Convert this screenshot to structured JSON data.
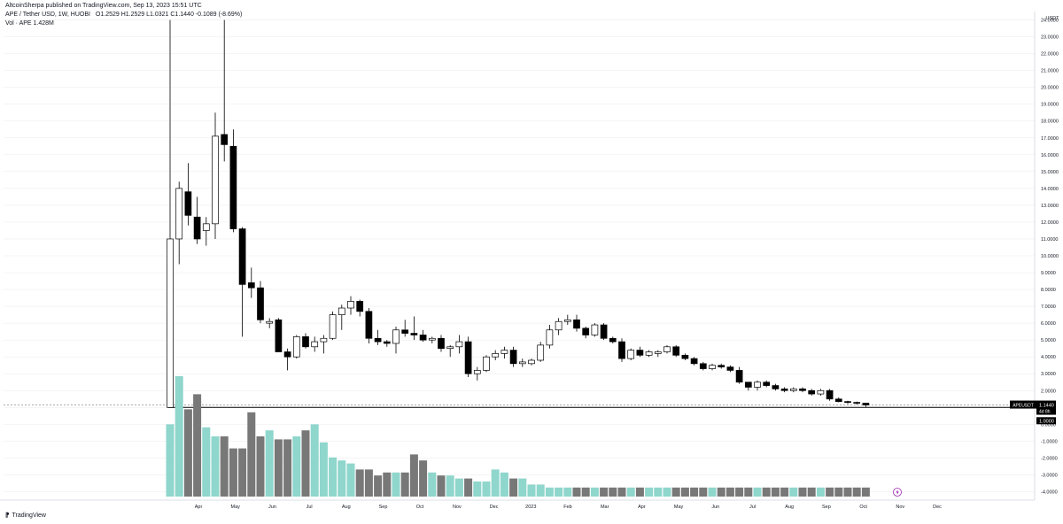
{
  "header": {
    "publisher": "AltcoinSherpa published on TradingView.com, Sep 13, 2023 15:51 UTC",
    "symbol": "APE / Tether USD, 1W, HUOBI",
    "ohlc": "O1.2529 H1.2529 L1.0321 C1.1440 -0.1089 (-8.69%)",
    "volume": "Vol · APE 1.428M"
  },
  "footer": {
    "brand": "TradingView"
  },
  "price_axis": {
    "currency": "USDT",
    "ticks": [
      "24.0000",
      "23.0000",
      "22.0000",
      "21.0000",
      "20.0000",
      "19.0000",
      "18.0000",
      "17.0000",
      "16.0000",
      "15.0000",
      "14.0000",
      "13.0000",
      "12.0000",
      "11.0000",
      "10.0000",
      "9.0000",
      "8.0000",
      "7.0000",
      "6.0000",
      "5.0000",
      "4.0000",
      "3.0000",
      "2.0000",
      "1.0000",
      "0.0000",
      "-1.0000",
      "-2.0000",
      "-3.0000",
      "-4.0000"
    ],
    "last_price_badge": "APEUSDT",
    "last_price": "1.1440",
    "countdown": "4d 8h",
    "line_price": "1.0000"
  },
  "time_axis": {
    "ticks": [
      "Apr",
      "May",
      "Jun",
      "Jul",
      "Aug",
      "Sep",
      "Oct",
      "Nov",
      "Dec",
      "2023",
      "Feb",
      "Mar",
      "Apr",
      "May",
      "Jun",
      "Jul",
      "Aug",
      "Sep",
      "Oct",
      "Nov",
      "Dec"
    ]
  },
  "colors": {
    "up_body": "#ffffff",
    "down_body": "#000000",
    "wick": "#000000",
    "vol_up": "#8fd6cc",
    "vol_down": "#787878",
    "grid": "#e6e6e6"
  },
  "chart_data": {
    "type": "candlestick",
    "title": "APE / Tether USD, 1W, HUOBI",
    "ylabel": "USDT",
    "ylim": [
      -4.5,
      24.5
    ],
    "horizontal_line": 1.0,
    "candles": [
      {
        "o": 1.0,
        "h": 24.0,
        "l": 1.0,
        "c": 11.0
      },
      {
        "o": 11.0,
        "h": 14.4,
        "l": 9.5,
        "c": 14.0
      },
      {
        "o": 13.8,
        "h": 15.5,
        "l": 11.8,
        "c": 12.4
      },
      {
        "o": 12.3,
        "h": 13.5,
        "l": 10.7,
        "c": 11.0
      },
      {
        "o": 11.5,
        "h": 12.3,
        "l": 10.6,
        "c": 11.9
      },
      {
        "o": 11.9,
        "h": 18.5,
        "l": 11.0,
        "c": 17.1
      },
      {
        "o": 17.2,
        "h": 24.0,
        "l": 15.6,
        "c": 16.6
      },
      {
        "o": 16.5,
        "h": 17.5,
        "l": 11.4,
        "c": 11.6
      },
      {
        "o": 11.6,
        "h": 11.7,
        "l": 5.2,
        "c": 8.3
      },
      {
        "o": 8.4,
        "h": 9.3,
        "l": 7.5,
        "c": 8.1
      },
      {
        "o": 8.1,
        "h": 8.5,
        "l": 6.0,
        "c": 6.2
      },
      {
        "o": 6.0,
        "h": 6.3,
        "l": 5.7,
        "c": 6.1
      },
      {
        "o": 6.2,
        "h": 6.3,
        "l": 4.3,
        "c": 4.3
      },
      {
        "o": 4.3,
        "h": 4.5,
        "l": 3.2,
        "c": 4.0
      },
      {
        "o": 4.0,
        "h": 5.3,
        "l": 3.9,
        "c": 5.2
      },
      {
        "o": 5.2,
        "h": 5.4,
        "l": 4.5,
        "c": 4.6
      },
      {
        "o": 4.6,
        "h": 5.2,
        "l": 4.3,
        "c": 4.9
      },
      {
        "o": 4.9,
        "h": 5.3,
        "l": 4.2,
        "c": 5.1
      },
      {
        "o": 5.1,
        "h": 6.7,
        "l": 5.0,
        "c": 6.5
      },
      {
        "o": 6.5,
        "h": 7.1,
        "l": 5.6,
        "c": 6.9
      },
      {
        "o": 6.9,
        "h": 7.6,
        "l": 6.5,
        "c": 7.3
      },
      {
        "o": 7.3,
        "h": 7.4,
        "l": 6.4,
        "c": 6.7
      },
      {
        "o": 6.7,
        "h": 6.9,
        "l": 4.8,
        "c": 5.1
      },
      {
        "o": 5.1,
        "h": 5.6,
        "l": 4.7,
        "c": 4.9
      },
      {
        "o": 4.9,
        "h": 5.0,
        "l": 4.6,
        "c": 4.8
      },
      {
        "o": 4.8,
        "h": 5.8,
        "l": 4.2,
        "c": 5.6
      },
      {
        "o": 5.6,
        "h": 6.2,
        "l": 5.2,
        "c": 5.4
      },
      {
        "o": 5.4,
        "h": 6.4,
        "l": 5.0,
        "c": 5.3
      },
      {
        "o": 5.3,
        "h": 5.6,
        "l": 4.9,
        "c": 5.0
      },
      {
        "o": 5.0,
        "h": 5.2,
        "l": 4.8,
        "c": 5.1
      },
      {
        "o": 5.1,
        "h": 5.3,
        "l": 4.3,
        "c": 4.5
      },
      {
        "o": 4.5,
        "h": 4.7,
        "l": 4.0,
        "c": 4.6
      },
      {
        "o": 4.6,
        "h": 5.3,
        "l": 4.2,
        "c": 4.9
      },
      {
        "o": 4.9,
        "h": 5.2,
        "l": 2.8,
        "c": 3.0
      },
      {
        "o": 3.0,
        "h": 3.4,
        "l": 2.6,
        "c": 3.2
      },
      {
        "o": 3.2,
        "h": 4.1,
        "l": 3.1,
        "c": 4.0
      },
      {
        "o": 4.0,
        "h": 4.4,
        "l": 3.8,
        "c": 4.2
      },
      {
        "o": 4.2,
        "h": 4.6,
        "l": 3.9,
        "c": 4.4
      },
      {
        "o": 4.4,
        "h": 4.6,
        "l": 3.4,
        "c": 3.6
      },
      {
        "o": 3.6,
        "h": 3.9,
        "l": 3.4,
        "c": 3.7
      },
      {
        "o": 3.6,
        "h": 3.9,
        "l": 3.5,
        "c": 3.8
      },
      {
        "o": 3.8,
        "h": 4.9,
        "l": 3.7,
        "c": 4.7
      },
      {
        "o": 4.7,
        "h": 5.9,
        "l": 4.5,
        "c": 5.6
      },
      {
        "o": 5.6,
        "h": 6.3,
        "l": 5.3,
        "c": 6.1
      },
      {
        "o": 6.1,
        "h": 6.5,
        "l": 5.9,
        "c": 6.2
      },
      {
        "o": 6.2,
        "h": 6.5,
        "l": 5.5,
        "c": 5.7
      },
      {
        "o": 5.7,
        "h": 5.8,
        "l": 5.1,
        "c": 5.3
      },
      {
        "o": 5.3,
        "h": 6.0,
        "l": 5.2,
        "c": 5.9
      },
      {
        "o": 5.9,
        "h": 6.0,
        "l": 5.0,
        "c": 5.1
      },
      {
        "o": 5.1,
        "h": 5.2,
        "l": 4.8,
        "c": 4.9
      },
      {
        "o": 4.9,
        "h": 5.1,
        "l": 3.7,
        "c": 3.9
      },
      {
        "o": 3.9,
        "h": 4.5,
        "l": 3.8,
        "c": 4.4
      },
      {
        "o": 4.4,
        "h": 4.6,
        "l": 4.0,
        "c": 4.1
      },
      {
        "o": 4.1,
        "h": 4.4,
        "l": 4.0,
        "c": 4.3
      },
      {
        "o": 4.2,
        "h": 4.4,
        "l": 4.0,
        "c": 4.3
      },
      {
        "o": 4.3,
        "h": 4.7,
        "l": 4.2,
        "c": 4.6
      },
      {
        "o": 4.6,
        "h": 4.7,
        "l": 4.0,
        "c": 4.1
      },
      {
        "o": 4.1,
        "h": 4.2,
        "l": 3.8,
        "c": 3.9
      },
      {
        "o": 3.9,
        "h": 4.0,
        "l": 3.5,
        "c": 3.6
      },
      {
        "o": 3.6,
        "h": 3.7,
        "l": 3.2,
        "c": 3.3
      },
      {
        "o": 3.3,
        "h": 3.6,
        "l": 3.2,
        "c": 3.5
      },
      {
        "o": 3.5,
        "h": 3.6,
        "l": 3.3,
        "c": 3.4
      },
      {
        "o": 3.4,
        "h": 3.5,
        "l": 3.1,
        "c": 3.2
      },
      {
        "o": 3.2,
        "h": 3.4,
        "l": 2.4,
        "c": 2.5
      },
      {
        "o": 2.5,
        "h": 2.5,
        "l": 2.0,
        "c": 2.2
      },
      {
        "o": 2.2,
        "h": 2.6,
        "l": 2.0,
        "c": 2.5
      },
      {
        "o": 2.5,
        "h": 2.6,
        "l": 2.2,
        "c": 2.3
      },
      {
        "o": 2.3,
        "h": 2.4,
        "l": 2.0,
        "c": 2.1
      },
      {
        "o": 2.1,
        "h": 2.2,
        "l": 1.9,
        "c": 2.0
      },
      {
        "o": 2.0,
        "h": 2.2,
        "l": 1.9,
        "c": 2.1
      },
      {
        "o": 2.1,
        "h": 2.2,
        "l": 1.9,
        "c": 2.0
      },
      {
        "o": 2.0,
        "h": 2.1,
        "l": 1.7,
        "c": 1.8
      },
      {
        "o": 1.8,
        "h": 2.1,
        "l": 1.7,
        "c": 2.0
      },
      {
        "o": 2.0,
        "h": 2.1,
        "l": 1.4,
        "c": 1.5
      },
      {
        "o": 1.5,
        "h": 1.6,
        "l": 1.3,
        "c": 1.35
      },
      {
        "o": 1.35,
        "h": 1.4,
        "l": 1.2,
        "c": 1.3
      },
      {
        "o": 1.3,
        "h": 1.35,
        "l": 1.15,
        "c": 1.25
      },
      {
        "o": 1.2529,
        "h": 1.2529,
        "l": 1.0321,
        "c": 1.144
      }
    ],
    "volume": [
      2.4,
      4.0,
      2.9,
      3.4,
      2.3,
      2.0,
      2.0,
      1.6,
      1.6,
      2.8,
      2.0,
      2.2,
      1.9,
      1.9,
      2.0,
      2.2,
      2.4,
      1.8,
      1.3,
      1.2,
      1.1,
      0.9,
      0.9,
      0.7,
      0.8,
      0.8,
      0.8,
      1.4,
      1.2,
      0.8,
      0.7,
      0.7,
      0.6,
      0.6,
      0.5,
      0.5,
      0.9,
      0.8,
      0.6,
      0.6,
      0.4,
      0.4,
      0.3,
      0.3,
      0.3,
      0.3,
      0.3,
      0.3,
      0.3,
      0.3,
      0.3,
      0.3,
      0.3,
      0.3,
      0.3,
      0.3,
      0.3,
      0.3,
      0.3,
      0.3,
      0.3,
      0.3,
      0.3,
      0.3,
      0.3,
      0.3,
      0.3,
      0.3,
      0.3,
      0.3,
      0.3,
      0.3,
      0.3,
      0.3,
      0.3,
      0.3,
      0.3,
      0.3
    ]
  }
}
